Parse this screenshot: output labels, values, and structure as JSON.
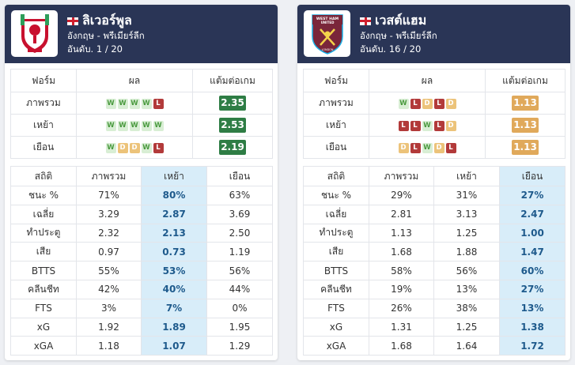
{
  "teams": [
    {
      "name": "ลิเวอร์พูล",
      "logo_icon": "liverpool-crest-icon",
      "league": "อังกฤษ - พรีเมียร์ลีก",
      "rank": "อันดับ. 1 / 20",
      "form_headers": [
        "ฟอร์ม",
        "ผล",
        "แต้มต่อเกม"
      ],
      "form_rows": [
        {
          "label": "ภาพรวม",
          "results": [
            "W",
            "W",
            "W",
            "W",
            "L"
          ],
          "ppg": "2.35",
          "ppg_color": "#2e7d45"
        },
        {
          "label": "เหย้า",
          "results": [
            "W",
            "W",
            "W",
            "W",
            "W"
          ],
          "ppg": "2.53",
          "ppg_color": "#2e7d45"
        },
        {
          "label": "เยือน",
          "results": [
            "W",
            "D",
            "D",
            "W",
            "L"
          ],
          "ppg": "2.19",
          "ppg_color": "#2e7d45"
        }
      ],
      "stats_headers": [
        "สถิติ",
        "ภาพรวม",
        "เหย้า",
        "เยือน"
      ],
      "highlight_col": 2,
      "stats_rows": [
        {
          "label": "ชนะ %",
          "values": [
            "71%",
            "80%",
            "63%"
          ]
        },
        {
          "label": "เฉลี่ย",
          "values": [
            "3.29",
            "2.87",
            "3.69"
          ]
        },
        {
          "label": "ทำประตู",
          "values": [
            "2.32",
            "2.13",
            "2.50"
          ]
        },
        {
          "label": "เสีย",
          "values": [
            "0.97",
            "0.73",
            "1.19"
          ]
        },
        {
          "label": "BTTS",
          "values": [
            "55%",
            "53%",
            "56%"
          ]
        },
        {
          "label": "คลีนชีท",
          "values": [
            "42%",
            "40%",
            "44%"
          ]
        },
        {
          "label": "FTS",
          "values": [
            "3%",
            "7%",
            "0%"
          ]
        },
        {
          "label": "xG",
          "values": [
            "1.92",
            "1.89",
            "1.95"
          ]
        },
        {
          "label": "xGA",
          "values": [
            "1.18",
            "1.07",
            "1.29"
          ]
        }
      ]
    },
    {
      "name": "เวสต์แฮม",
      "logo_icon": "west-ham-crest-icon",
      "logo_text": [
        "WEST HAM",
        "UNITED",
        "LONDON"
      ],
      "league": "อังกฤษ - พรีเมียร์ลีก",
      "rank": "อันดับ. 16 / 20",
      "form_headers": [
        "ฟอร์ม",
        "ผล",
        "แต้มต่อเกม"
      ],
      "form_rows": [
        {
          "label": "ภาพรวม",
          "results": [
            "W",
            "L",
            "D",
            "L",
            "D"
          ],
          "ppg": "1.13",
          "ppg_color": "#e0a95b"
        },
        {
          "label": "เหย้า",
          "results": [
            "L",
            "L",
            "W",
            "L",
            "D"
          ],
          "ppg": "1.13",
          "ppg_color": "#e0a95b"
        },
        {
          "label": "เยือน",
          "results": [
            "D",
            "L",
            "W",
            "D",
            "L"
          ],
          "ppg": "1.13",
          "ppg_color": "#e0a95b"
        }
      ],
      "stats_headers": [
        "สถิติ",
        "ภาพรวม",
        "เหย้า",
        "เยือน"
      ],
      "highlight_col": 3,
      "stats_rows": [
        {
          "label": "ชนะ %",
          "values": [
            "29%",
            "31%",
            "27%"
          ]
        },
        {
          "label": "เฉลี่ย",
          "values": [
            "2.81",
            "3.13",
            "2.47"
          ]
        },
        {
          "label": "ทำประตู",
          "values": [
            "1.13",
            "1.25",
            "1.00"
          ]
        },
        {
          "label": "เสีย",
          "values": [
            "1.68",
            "1.88",
            "1.47"
          ]
        },
        {
          "label": "BTTS",
          "values": [
            "58%",
            "56%",
            "60%"
          ]
        },
        {
          "label": "คลีนชีท",
          "values": [
            "19%",
            "13%",
            "27%"
          ]
        },
        {
          "label": "FTS",
          "values": [
            "26%",
            "38%",
            "13%"
          ]
        },
        {
          "label": "xG",
          "values": [
            "1.31",
            "1.25",
            "1.38"
          ]
        },
        {
          "label": "xGA",
          "values": [
            "1.68",
            "1.64",
            "1.72"
          ]
        }
      ]
    }
  ]
}
